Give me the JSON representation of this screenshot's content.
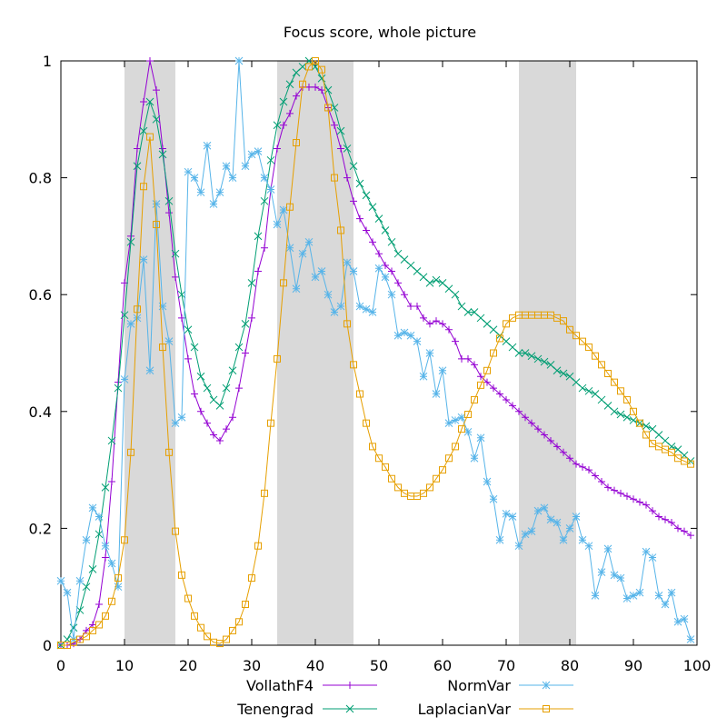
{
  "chart_data": {
    "type": "line",
    "title": "Focus score, whole picture",
    "xlabel": "",
    "ylabel": "",
    "xlim": [
      0,
      100
    ],
    "ylim": [
      0,
      1
    ],
    "x_ticks": [
      0,
      10,
      20,
      30,
      40,
      50,
      60,
      70,
      80,
      90,
      100
    ],
    "y_ticks": [
      0,
      0.2,
      0.4,
      0.6,
      0.8,
      1
    ],
    "y_tick_labels": [
      "0",
      "0.2",
      "0.4",
      "0.6",
      "0.8",
      "1"
    ],
    "grid": false,
    "legend_position": "bottom",
    "shaded_ranges": [
      [
        10,
        18
      ],
      [
        34,
        46
      ],
      [
        72,
        81
      ]
    ],
    "x": [
      0,
      1,
      2,
      3,
      4,
      5,
      6,
      7,
      8,
      9,
      10,
      11,
      12,
      13,
      14,
      15,
      16,
      17,
      18,
      19,
      20,
      21,
      22,
      23,
      24,
      25,
      26,
      27,
      28,
      29,
      30,
      31,
      32,
      33,
      34,
      35,
      36,
      37,
      38,
      39,
      40,
      41,
      42,
      43,
      44,
      45,
      46,
      47,
      48,
      49,
      50,
      51,
      52,
      53,
      54,
      55,
      56,
      57,
      58,
      59,
      60,
      61,
      62,
      63,
      64,
      65,
      66,
      67,
      68,
      69,
      70,
      71,
      72,
      73,
      74,
      75,
      76,
      77,
      78,
      79,
      80,
      81,
      82,
      83,
      84,
      85,
      86,
      87,
      88,
      89,
      90,
      91,
      92,
      93,
      94,
      95,
      96,
      97,
      98,
      99
    ],
    "series": [
      {
        "name": "VollathF4",
        "color": "#9400d3",
        "marker": "plus",
        "values": [
          0.0,
          0.0,
          0.003,
          0.01,
          0.025,
          0.035,
          0.07,
          0.15,
          0.28,
          0.45,
          0.62,
          0.7,
          0.85,
          0.93,
          1.0,
          0.95,
          0.85,
          0.74,
          0.63,
          0.56,
          0.49,
          0.43,
          0.4,
          0.38,
          0.36,
          0.35,
          0.37,
          0.39,
          0.44,
          0.5,
          0.56,
          0.64,
          0.68,
          0.78,
          0.85,
          0.89,
          0.91,
          0.94,
          0.955,
          0.955,
          0.955,
          0.95,
          0.92,
          0.89,
          0.85,
          0.8,
          0.76,
          0.73,
          0.71,
          0.69,
          0.67,
          0.65,
          0.64,
          0.62,
          0.6,
          0.58,
          0.58,
          0.56,
          0.55,
          0.555,
          0.55,
          0.54,
          0.52,
          0.49,
          0.49,
          0.48,
          0.46,
          0.45,
          0.44,
          0.43,
          0.42,
          0.41,
          0.4,
          0.39,
          0.38,
          0.37,
          0.36,
          0.35,
          0.34,
          0.33,
          0.32,
          0.31,
          0.305,
          0.3,
          0.29,
          0.28,
          0.27,
          0.265,
          0.26,
          0.255,
          0.25,
          0.245,
          0.24,
          0.23,
          0.22,
          0.215,
          0.21,
          0.2,
          0.195,
          0.188
        ]
      },
      {
        "name": "Tenengrad",
        "color": "#009e73",
        "marker": "x",
        "values": [
          0.0,
          0.01,
          0.03,
          0.06,
          0.1,
          0.13,
          0.19,
          0.27,
          0.35,
          0.44,
          0.565,
          0.69,
          0.82,
          0.88,
          0.93,
          0.9,
          0.84,
          0.76,
          0.67,
          0.6,
          0.54,
          0.51,
          0.46,
          0.44,
          0.42,
          0.41,
          0.44,
          0.47,
          0.51,
          0.55,
          0.62,
          0.7,
          0.76,
          0.83,
          0.89,
          0.93,
          0.96,
          0.98,
          0.99,
          1.0,
          0.99,
          0.97,
          0.95,
          0.92,
          0.88,
          0.85,
          0.82,
          0.79,
          0.77,
          0.75,
          0.73,
          0.71,
          0.69,
          0.67,
          0.66,
          0.65,
          0.64,
          0.63,
          0.62,
          0.625,
          0.62,
          0.61,
          0.6,
          0.58,
          0.57,
          0.57,
          0.56,
          0.55,
          0.54,
          0.53,
          0.52,
          0.51,
          0.5,
          0.5,
          0.495,
          0.49,
          0.485,
          0.48,
          0.47,
          0.465,
          0.46,
          0.45,
          0.44,
          0.435,
          0.43,
          0.42,
          0.41,
          0.4,
          0.395,
          0.39,
          0.385,
          0.38,
          0.375,
          0.37,
          0.36,
          0.35,
          0.34,
          0.335,
          0.325,
          0.315
        ]
      },
      {
        "name": "NormVar",
        "color": "#56b4e9",
        "marker": "star",
        "values": [
          0.11,
          0.09,
          0.01,
          0.11,
          0.18,
          0.235,
          0.22,
          0.17,
          0.14,
          0.1,
          0.455,
          0.55,
          0.56,
          0.66,
          0.47,
          0.755,
          0.58,
          0.52,
          0.38,
          0.39,
          0.81,
          0.8,
          0.775,
          0.855,
          0.755,
          0.775,
          0.82,
          0.8,
          1.0,
          0.82,
          0.84,
          0.845,
          0.8,
          0.78,
          0.72,
          0.745,
          0.68,
          0.61,
          0.67,
          0.69,
          0.63,
          0.64,
          0.6,
          0.57,
          0.58,
          0.655,
          0.64,
          0.58,
          0.575,
          0.57,
          0.645,
          0.63,
          0.6,
          0.53,
          0.535,
          0.53,
          0.52,
          0.46,
          0.5,
          0.43,
          0.47,
          0.38,
          0.385,
          0.39,
          0.365,
          0.32,
          0.355,
          0.28,
          0.25,
          0.18,
          0.225,
          0.22,
          0.17,
          0.19,
          0.195,
          0.23,
          0.235,
          0.215,
          0.21,
          0.18,
          0.2,
          0.22,
          0.18,
          0.17,
          0.085,
          0.125,
          0.165,
          0.12,
          0.115,
          0.08,
          0.085,
          0.09,
          0.16,
          0.15,
          0.085,
          0.07,
          0.09,
          0.04,
          0.045,
          0.01
        ]
      },
      {
        "name": "LaplacianVar",
        "color": "#e69f00",
        "marker": "square",
        "values": [
          0.0,
          0.0,
          0.005,
          0.01,
          0.015,
          0.025,
          0.035,
          0.05,
          0.075,
          0.115,
          0.18,
          0.33,
          0.575,
          0.785,
          0.87,
          0.72,
          0.51,
          0.33,
          0.195,
          0.12,
          0.08,
          0.05,
          0.03,
          0.015,
          0.005,
          0.003,
          0.01,
          0.025,
          0.04,
          0.07,
          0.115,
          0.17,
          0.26,
          0.38,
          0.49,
          0.62,
          0.75,
          0.86,
          0.96,
          0.99,
          1.0,
          0.985,
          0.92,
          0.8,
          0.71,
          0.55,
          0.48,
          0.43,
          0.38,
          0.34,
          0.32,
          0.305,
          0.285,
          0.27,
          0.26,
          0.255,
          0.255,
          0.26,
          0.27,
          0.285,
          0.3,
          0.32,
          0.34,
          0.37,
          0.395,
          0.42,
          0.445,
          0.47,
          0.5,
          0.525,
          0.55,
          0.56,
          0.565,
          0.565,
          0.565,
          0.565,
          0.565,
          0.565,
          0.56,
          0.555,
          0.54,
          0.53,
          0.52,
          0.51,
          0.495,
          0.48,
          0.465,
          0.45,
          0.435,
          0.42,
          0.4,
          0.38,
          0.36,
          0.345,
          0.34,
          0.335,
          0.33,
          0.32,
          0.315,
          0.31
        ]
      }
    ]
  }
}
